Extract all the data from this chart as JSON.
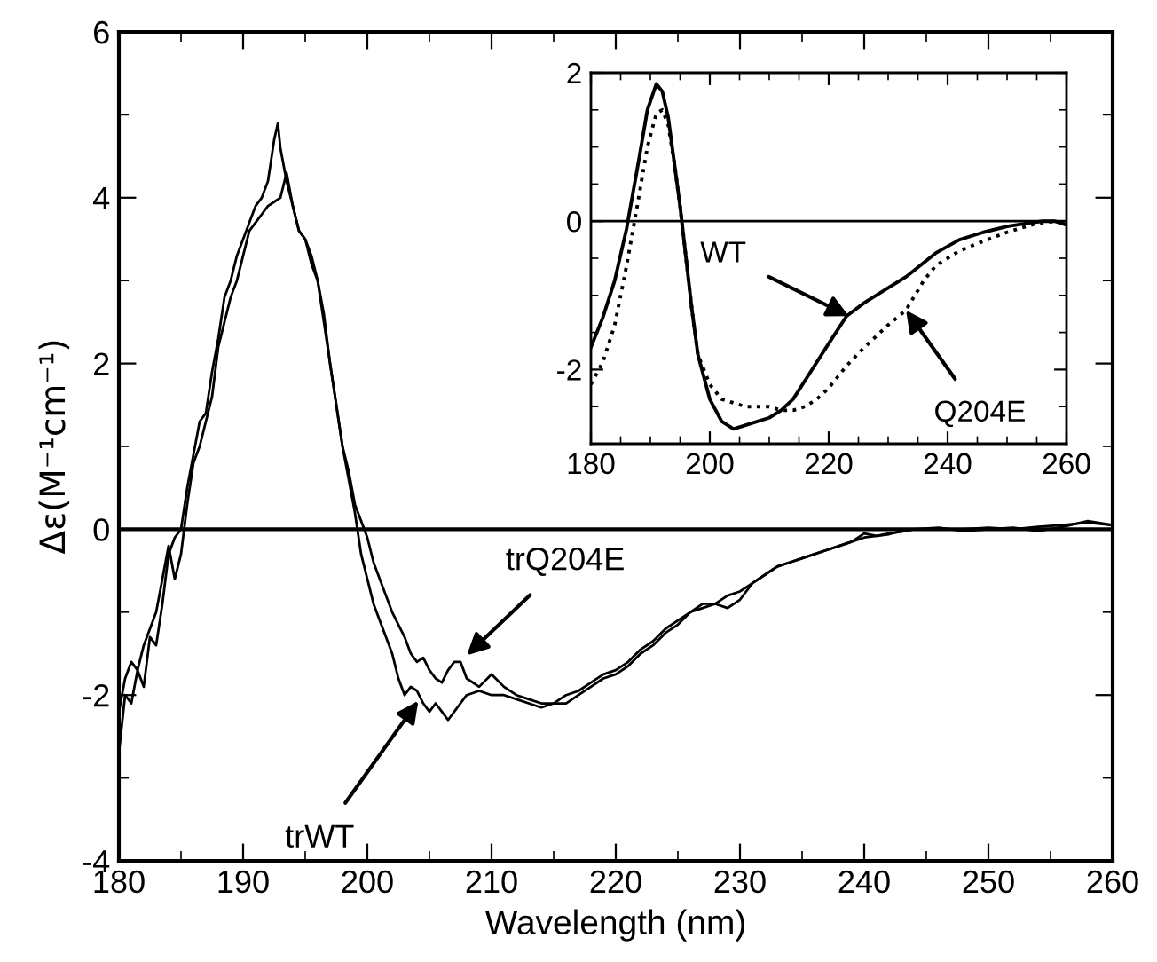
{
  "chart_data": [
    {
      "type": "line",
      "xlabel": "Wavelength (nm)",
      "ylabel": "Δε(M⁻¹cm⁻¹)",
      "xlim": [
        180,
        260
      ],
      "ylim": [
        -4,
        6
      ],
      "xticks": [
        180,
        {
          "value": 185,
          "label": null
        },
        190,
        {
          "value": 195,
          "label": null
        },
        200,
        {
          "value": 205,
          "label": null
        },
        210,
        {
          "value": 215,
          "label": null
        },
        220,
        {
          "value": 225,
          "label": null
        },
        230,
        {
          "value": 235,
          "label": null
        },
        240,
        {
          "value": 245,
          "label": null
        },
        250,
        {
          "value": 255,
          "label": null
        },
        260
      ],
      "yticks": [
        -4,
        {
          "value": -3,
          "label": null
        },
        -2,
        {
          "value": -1,
          "label": null
        },
        0,
        {
          "value": 1,
          "label": null
        },
        2,
        {
          "value": 3,
          "label": null
        },
        4,
        {
          "value": 5,
          "label": null
        },
        6
      ],
      "grid": false,
      "legend": false,
      "marker": "none",
      "ref_lines": [
        {
          "axis": "y",
          "value": 0,
          "color": "#000000",
          "line_style": "solid"
        }
      ],
      "annotations": [
        {
          "text": "trQ204E",
          "x": 208.0,
          "y": -1.52
        },
        {
          "text": "trWT",
          "x": 204.1,
          "y": -2.07
        }
      ],
      "series": [
        {
          "color": "#000000",
          "line_style": "solid",
          "x": [
            180,
            180.5,
            181,
            181.5,
            182,
            182.5,
            183,
            183.5,
            184,
            184.5,
            185,
            185.5,
            186,
            186.5,
            187,
            187.5,
            188,
            188.5,
            189,
            189.5,
            190,
            190.5,
            191,
            191.5,
            192,
            192.5,
            192.8,
            193,
            193.5,
            194,
            194.5,
            195,
            195.5,
            196,
            196.5,
            197,
            197.5,
            198,
            198.5,
            199,
            199.5,
            200,
            200.5,
            201,
            201.5,
            202,
            202.5,
            203,
            203.5,
            204,
            204.5,
            205,
            205.5,
            206,
            206.5,
            207,
            207.5,
            208,
            209,
            210,
            211,
            212,
            213,
            214,
            215,
            216,
            217,
            218,
            219,
            220,
            221,
            222,
            223,
            224,
            225,
            226,
            227,
            228,
            229,
            230,
            231,
            232,
            233,
            234,
            235,
            236,
            237,
            238,
            239,
            240,
            241,
            242,
            243,
            244,
            246,
            248,
            250,
            252,
            254,
            256,
            258,
            260
          ],
          "values": [
            -2.7,
            -2.0,
            -2.1,
            -1.7,
            -1.9,
            -1.3,
            -1.4,
            -0.9,
            -0.3,
            -0.1,
            0.0,
            0.5,
            0.9,
            1.3,
            1.4,
            1.9,
            2.3,
            2.8,
            3.0,
            3.3,
            3.5,
            3.7,
            3.9,
            4.0,
            4.2,
            4.7,
            4.9,
            4.6,
            4.2,
            3.9,
            3.6,
            3.5,
            3.3,
            3.0,
            2.5,
            2.0,
            1.5,
            1.0,
            0.6,
            0.2,
            -0.3,
            -0.6,
            -0.9,
            -1.1,
            -1.3,
            -1.5,
            -1.8,
            -2.0,
            -1.9,
            -1.95,
            -2.1,
            -2.2,
            -2.1,
            -2.2,
            -2.3,
            -2.2,
            -2.1,
            -2.0,
            -1.95,
            -2.0,
            -2.0,
            -2.05,
            -2.1,
            -2.15,
            -2.1,
            -2.0,
            -1.95,
            -1.85,
            -1.75,
            -1.7,
            -1.6,
            -1.45,
            -1.35,
            -1.2,
            -1.1,
            -1.0,
            -0.9,
            -0.9,
            -0.8,
            -0.75,
            -0.65,
            -0.55,
            -0.45,
            -0.4,
            -0.35,
            -0.3,
            -0.25,
            -0.2,
            -0.15,
            -0.1,
            -0.08,
            -0.05,
            -0.03,
            0,
            0,
            0,
            0.02,
            0.0,
            0.03,
            0.05,
            0.08,
            0.05
          ]
        },
        {
          "color": "#000000",
          "line_style": "solid",
          "x": [
            180,
            180.5,
            181,
            181.5,
            182,
            182.5,
            183,
            183.5,
            184,
            184.5,
            185,
            185.5,
            186,
            186.5,
            187,
            187.5,
            188,
            188.5,
            189,
            189.5,
            190,
            190.5,
            191,
            191.5,
            192,
            192.5,
            193,
            193.5,
            194,
            194.5,
            195,
            195.5,
            196,
            196.5,
            197,
            197.5,
            198,
            198.5,
            199,
            199.5,
            200,
            200.5,
            201,
            201.5,
            202,
            202.5,
            203,
            203.5,
            204,
            204.5,
            205,
            205.5,
            206,
            206.5,
            207,
            207.5,
            208,
            209,
            210,
            211,
            212,
            213,
            214,
            215,
            216,
            217,
            218,
            219,
            220,
            221,
            222,
            223,
            224,
            225,
            226,
            227,
            228,
            229,
            230,
            231,
            232,
            233,
            234,
            235,
            236,
            237,
            238,
            239,
            240,
            241,
            242,
            243,
            244,
            246,
            248,
            250,
            252,
            254,
            256,
            258,
            260
          ],
          "values": [
            -2.2,
            -1.8,
            -1.6,
            -1.7,
            -1.4,
            -1.2,
            -1.0,
            -0.6,
            -0.2,
            -0.6,
            -0.3,
            0.3,
            0.8,
            1.0,
            1.3,
            1.6,
            2.2,
            2.5,
            2.8,
            3.0,
            3.3,
            3.6,
            3.7,
            3.8,
            3.9,
            3.95,
            4.0,
            4.3,
            3.9,
            3.6,
            3.5,
            3.2,
            3.0,
            2.6,
            2.0,
            1.5,
            1.0,
            0.7,
            0.3,
            0.1,
            -0.1,
            -0.4,
            -0.6,
            -0.8,
            -1.0,
            -1.15,
            -1.3,
            -1.5,
            -1.6,
            -1.55,
            -1.7,
            -1.8,
            -1.85,
            -1.7,
            -1.6,
            -1.6,
            -1.8,
            -1.9,
            -1.75,
            -1.9,
            -2.0,
            -2.05,
            -2.1,
            -2.1,
            -2.1,
            -2.0,
            -1.9,
            -1.8,
            -1.75,
            -1.65,
            -1.5,
            -1.4,
            -1.25,
            -1.15,
            -1.0,
            -0.95,
            -0.9,
            -0.95,
            -0.85,
            -0.65,
            -0.55,
            -0.45,
            -0.4,
            -0.35,
            -0.3,
            -0.25,
            -0.2,
            -0.15,
            -0.05,
            -0.08,
            -0.06,
            -0.02,
            0,
            0.02,
            -0.02,
            0.0,
            0.02,
            -0.02,
            0.03,
            0.1,
            0.05
          ]
        }
      ]
    },
    {
      "type": "line",
      "xlim": [
        180,
        260
      ],
      "ylim": [
        -3,
        2
      ],
      "xticks": [
        180,
        {
          "value": 185,
          "label": null
        },
        {
          "value": 190,
          "label": null
        },
        {
          "value": 195,
          "label": null
        },
        200,
        {
          "value": 205,
          "label": null
        },
        {
          "value": 210,
          "label": null
        },
        {
          "value": 215,
          "label": null
        },
        220,
        {
          "value": 225,
          "label": null
        },
        {
          "value": 230,
          "label": null
        },
        {
          "value": 235,
          "label": null
        },
        240,
        {
          "value": 245,
          "label": null
        },
        {
          "value": 250,
          "label": null
        },
        {
          "value": 255,
          "label": null
        },
        260
      ],
      "yticks": [
        {
          "value": -3,
          "label": null
        },
        {
          "value": -2.5,
          "label": null
        },
        -2,
        {
          "value": -1.5,
          "label": null
        },
        {
          "value": -1,
          "label": null
        },
        {
          "value": -0.5,
          "label": null
        },
        0,
        {
          "value": 0.5,
          "label": null
        },
        {
          "value": 1,
          "label": null
        },
        {
          "value": 1.5,
          "label": null
        },
        2
      ],
      "grid": false,
      "legend": false,
      "marker": "none",
      "ref_lines": [
        {
          "axis": "y",
          "value": 0,
          "color": "#000000",
          "line_style": "solid"
        }
      ],
      "annotations": [
        {
          "text": "WT",
          "x": 223.4,
          "y": -1.28
        },
        {
          "text": "Q204E",
          "x": 233,
          "y": -1.2
        }
      ],
      "series": [
        {
          "color": "#000000",
          "line_style": "solid",
          "x": [
            180,
            182,
            184,
            186,
            188,
            189.5,
            191,
            192,
            193,
            194,
            195,
            196,
            197,
            198,
            200,
            202,
            204,
            206,
            208,
            210,
            212,
            214,
            216,
            218,
            220,
            223,
            226,
            230,
            233,
            238,
            242,
            246,
            250,
            254,
            256,
            258,
            260
          ],
          "values": [
            -1.7,
            -1.3,
            -0.8,
            -0.1,
            0.8,
            1.5,
            1.85,
            1.75,
            1.4,
            0.8,
            0.2,
            -0.5,
            -1.2,
            -1.8,
            -2.4,
            -2.7,
            -2.8,
            -2.75,
            -2.7,
            -2.65,
            -2.55,
            -2.4,
            -2.15,
            -1.9,
            -1.65,
            -1.28,
            -1.1,
            -0.9,
            -0.75,
            -0.43,
            -0.25,
            -0.15,
            -0.07,
            -0.02,
            0.0,
            0.0,
            -0.05
          ]
        },
        {
          "color": "#000000",
          "line_style": "dotted",
          "x": [
            180,
            182,
            184,
            186,
            188,
            189.5,
            191,
            192,
            193,
            194,
            195,
            196,
            197,
            198,
            200,
            202,
            204,
            206,
            208,
            210,
            212,
            214,
            216,
            218,
            220,
            223,
            226,
            230,
            233,
            236,
            238,
            242,
            246,
            250,
            252,
            255,
            258,
            260
          ],
          "values": [
            -2.2,
            -1.9,
            -1.4,
            -0.6,
            0.3,
            1.0,
            1.45,
            1.5,
            1.3,
            0.8,
            0.2,
            -0.5,
            -1.2,
            -1.8,
            -2.2,
            -2.4,
            -2.45,
            -2.5,
            -2.5,
            -2.5,
            -2.55,
            -2.55,
            -2.5,
            -2.4,
            -2.25,
            -1.95,
            -1.7,
            -1.4,
            -1.2,
            -0.8,
            -0.6,
            -0.4,
            -0.27,
            -0.15,
            -0.1,
            -0.03,
            0.0,
            -0.03
          ]
        }
      ]
    }
  ]
}
